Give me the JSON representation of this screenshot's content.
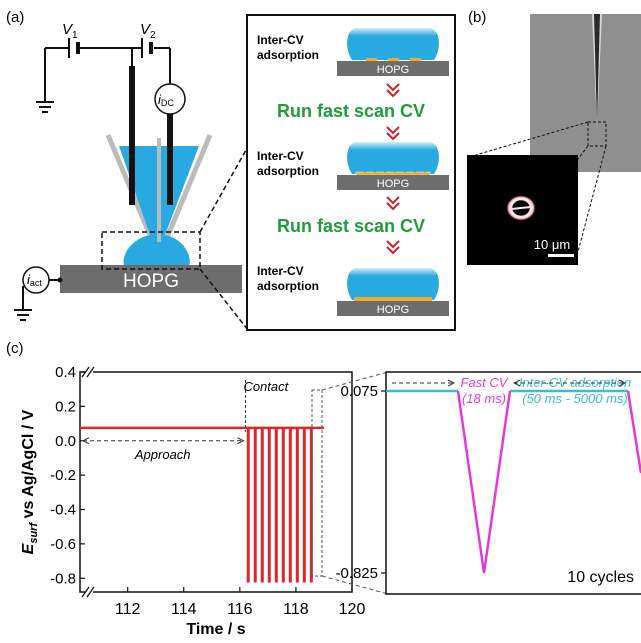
{
  "panel_a": {
    "label": "(a)",
    "v1_label": "V",
    "v1_sub": "1",
    "v2_label": "V",
    "v2_sub": "2",
    "idc_label": "i",
    "idc_sub": "DC",
    "iact_label": "i",
    "iact_sub": "act",
    "substrate": "HOPG"
  },
  "steps": {
    "adsorption_line1": "Inter-CV",
    "adsorption_line2": "adsorption",
    "run_cv": "Run fast scan CV",
    "substrate": "HOPG"
  },
  "panel_b": {
    "label": "(b)",
    "scale_bar": "10 μm"
  },
  "panel_c": {
    "label": "(c)",
    "approach": "Approach",
    "contact": "Contact",
    "fast_cv": "Fast CV",
    "fast_cv_duration": "(18 ms)",
    "inter_cv": "Inter-CV adsorption",
    "inter_cv_duration": "(50 ms - 5000 ms)",
    "cycles": "10 cycles",
    "inset_y_ticks": [
      "0.075",
      "-0.825"
    ]
  },
  "colors": {
    "electrolyte": "#29a9e1",
    "hopg": "#6d6d6d",
    "adsorbate": "#f0a830",
    "run_cv_text": "#1e9e3a",
    "chevron": "#d1202c",
    "trace_red": "#e0262b",
    "fast_cv": "#e23ad8",
    "inter_cv": "#3bbcd4"
  },
  "chart_data": {
    "type": "line",
    "xlabel": "Time / s",
    "ylabel": "E_surf vs Ag/AgCl / V",
    "x_ticks": [
      112,
      114,
      116,
      118,
      120
    ],
    "y_ticks": [
      "0.4",
      "0.2",
      "0.0",
      "-0.2",
      "-0.4",
      "-0.6",
      "-0.8"
    ],
    "xlim": [
      110.3,
      120
    ],
    "ylim": [
      -0.88,
      0.4
    ],
    "axis_breaks": true,
    "baseline_potential": 0.075,
    "min_potential": -0.825,
    "approach_range": [
      110.3,
      116.2
    ],
    "contact_time": 116.2,
    "cv_cycle_times": [
      116.3,
      116.55,
      116.8,
      117.05,
      117.3,
      117.55,
      117.8,
      118.05,
      118.3,
      118.55
    ],
    "trace_end": 119.0,
    "grid": false
  }
}
